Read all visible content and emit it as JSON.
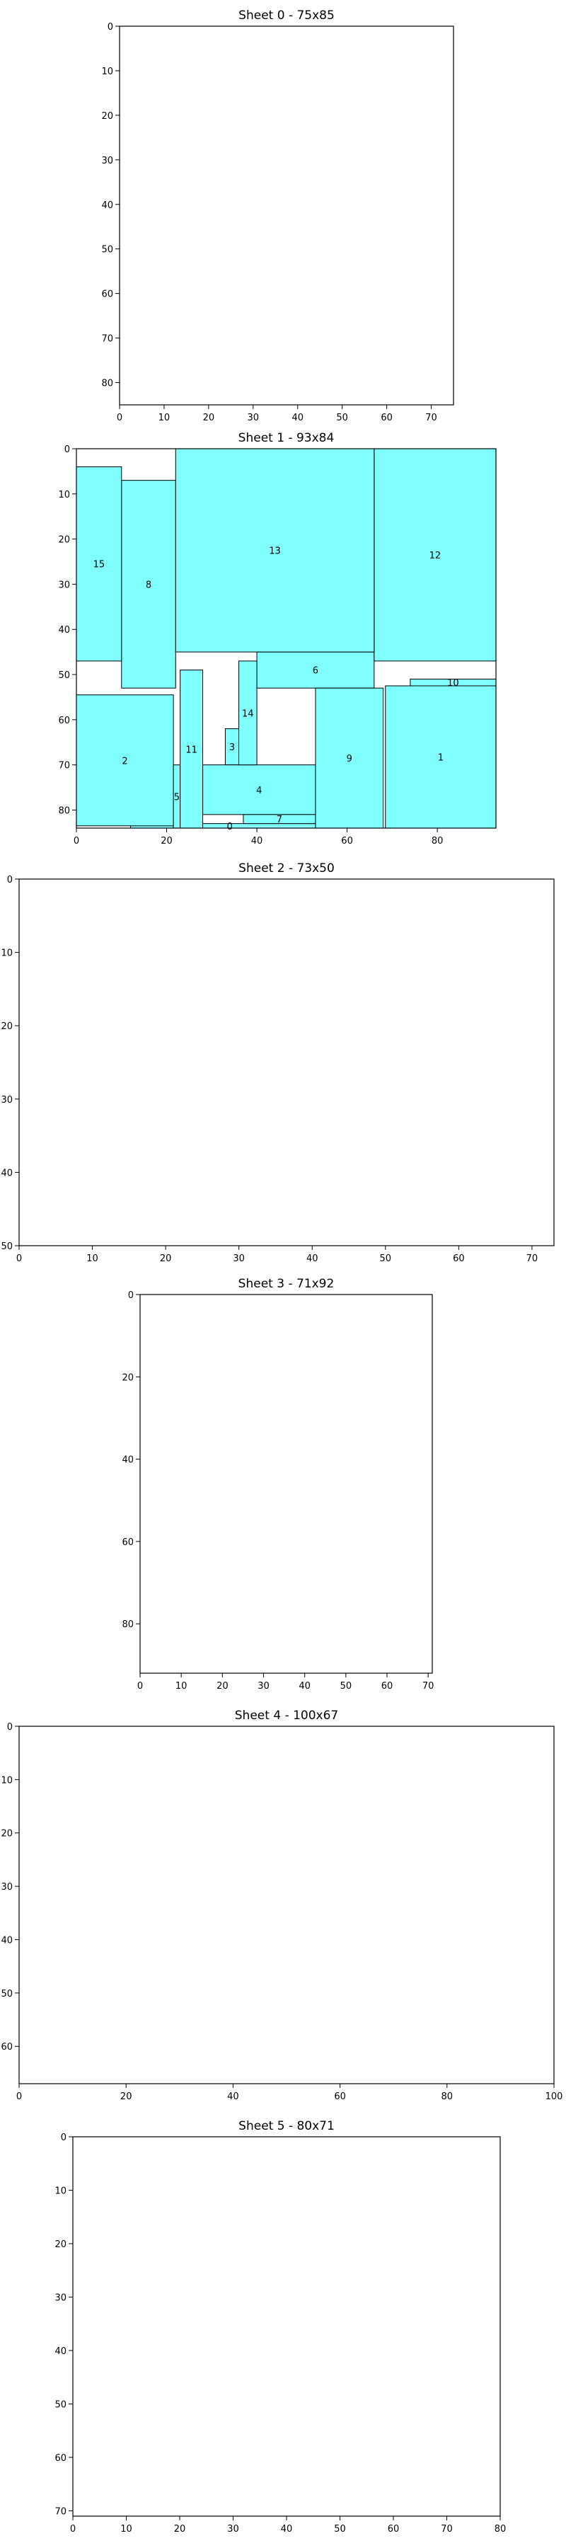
{
  "colors": {
    "piece_fill": "#80ffff",
    "piece_edge": "#000000",
    "frame": "#000000"
  },
  "chart_data": [
    {
      "type": "rectangle-packing",
      "title": "Sheet 0 - 75x85",
      "width": 75,
      "height": 85,
      "x_ticks": [
        "0",
        "10",
        "20",
        "30",
        "40",
        "50",
        "60",
        "70"
      ],
      "y_ticks": [
        "0",
        "10",
        "20",
        "30",
        "40",
        "50",
        "60",
        "70",
        "80"
      ],
      "pieces": []
    },
    {
      "type": "rectangle-packing",
      "title": "Sheet 1 - 93x84",
      "width": 93,
      "height": 84,
      "x_ticks": [
        "0",
        "20",
        "40",
        "60",
        "80"
      ],
      "y_ticks": [
        "0",
        "10",
        "20",
        "30",
        "40",
        "50",
        "60",
        "70",
        "80"
      ],
      "pieces": [
        {
          "label": "0",
          "x": 12,
          "y": 83,
          "w": 44,
          "h": 1
        },
        {
          "label": "1",
          "x": 68.5,
          "y": 52.5,
          "w": 24.5,
          "h": 31.5
        },
        {
          "label": "2",
          "x": 0,
          "y": 54.5,
          "w": 21.5,
          "h": 29
        },
        {
          "label": "3",
          "x": 33,
          "y": 62,
          "w": 3,
          "h": 8
        },
        {
          "label": "4",
          "x": 28,
          "y": 70,
          "w": 25,
          "h": 11
        },
        {
          "label": "5",
          "x": 21.5,
          "y": 70,
          "w": 1.5,
          "h": 14
        },
        {
          "label": "6",
          "x": 40,
          "y": 45,
          "w": 26,
          "h": 8
        },
        {
          "label": "7",
          "x": 37,
          "y": 81,
          "w": 16,
          "h": 2
        },
        {
          "label": "8",
          "x": 10,
          "y": 7,
          "w": 12,
          "h": 46
        },
        {
          "label": "9",
          "x": 53,
          "y": 53,
          "w": 15,
          "h": 31
        },
        {
          "label": "10",
          "x": 74,
          "y": 51,
          "w": 19,
          "h": 1.5
        },
        {
          "label": "11",
          "x": 23,
          "y": 49,
          "w": 5,
          "h": 35
        },
        {
          "label": "12",
          "x": 66,
          "y": 0,
          "w": 27,
          "h": 47
        },
        {
          "label": "13",
          "x": 22,
          "y": 0,
          "w": 44,
          "h": 45
        },
        {
          "label": "14",
          "x": 36,
          "y": 47,
          "w": 4,
          "h": 23
        },
        {
          "label": "15",
          "x": 0,
          "y": 4,
          "w": 10,
          "h": 43
        }
      ]
    },
    {
      "type": "rectangle-packing",
      "title": "Sheet 2 - 73x50",
      "width": 73,
      "height": 50,
      "x_ticks": [
        "0",
        "10",
        "20",
        "30",
        "40",
        "50",
        "60",
        "70"
      ],
      "y_ticks": [
        "0",
        "10",
        "20",
        "30",
        "40",
        "50"
      ],
      "pieces": []
    },
    {
      "type": "rectangle-packing",
      "title": "Sheet 3 - 71x92",
      "width": 71,
      "height": 92,
      "x_ticks": [
        "0",
        "10",
        "20",
        "30",
        "40",
        "50",
        "60",
        "70"
      ],
      "y_ticks": [
        "0",
        "20",
        "40",
        "60",
        "80"
      ],
      "pieces": []
    },
    {
      "type": "rectangle-packing",
      "title": "Sheet 4 - 100x67",
      "width": 100,
      "height": 67,
      "x_ticks": [
        "0",
        "20",
        "40",
        "60",
        "80",
        "100"
      ],
      "y_ticks": [
        "0",
        "10",
        "20",
        "30",
        "40",
        "50",
        "60"
      ],
      "pieces": []
    },
    {
      "type": "rectangle-packing",
      "title": "Sheet 5 - 80x71",
      "width": 80,
      "height": 71,
      "x_ticks": [
        "0",
        "10",
        "20",
        "30",
        "40",
        "50",
        "60",
        "70",
        "80"
      ],
      "y_ticks": [
        "0",
        "10",
        "20",
        "30",
        "40",
        "50",
        "60",
        "70"
      ],
      "pieces": []
    }
  ]
}
